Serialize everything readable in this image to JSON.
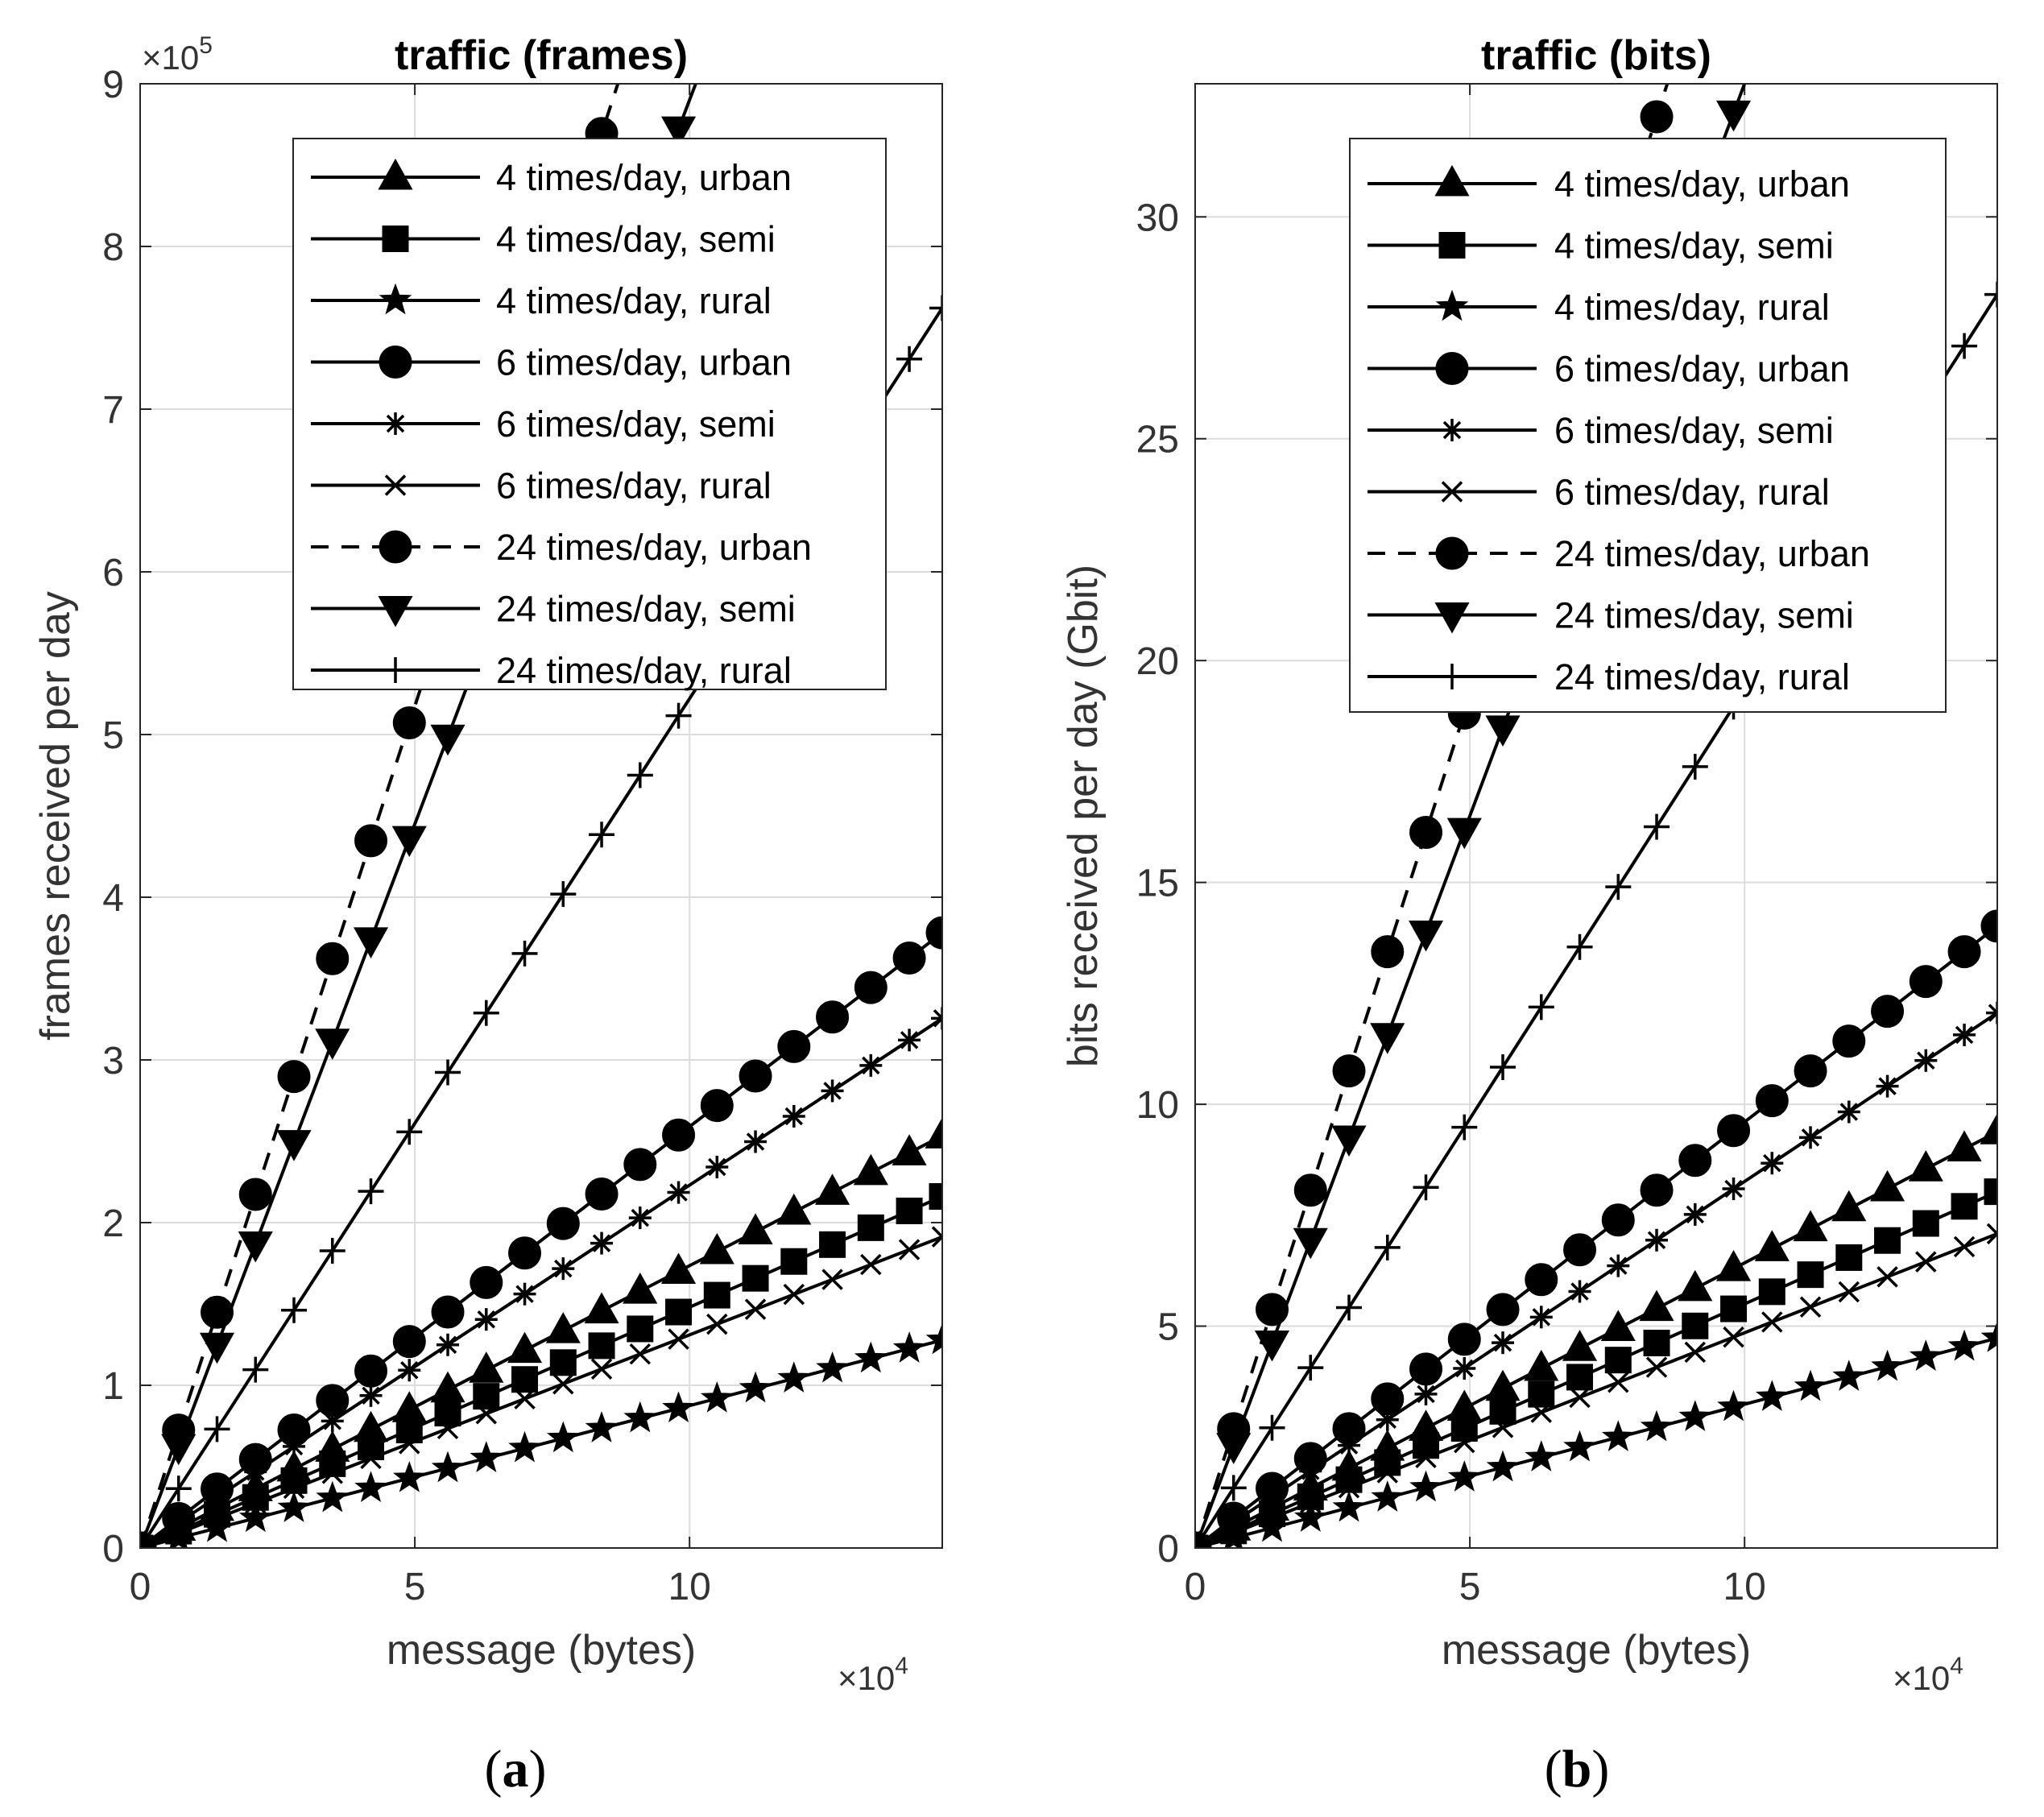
{
  "charts": [
    {
      "title": "traffic (frames)",
      "xlabel": "message (bytes)",
      "ylabel": "frames received per day",
      "x_exponent_base": "×10",
      "x_exponent_power": "4",
      "y_exponent_base": "×10",
      "y_exponent_power": "5",
      "x_tick_labels": [
        "0",
        "5",
        "10"
      ],
      "y_tick_labels": [
        "0",
        "1",
        "2",
        "3",
        "4",
        "5",
        "6",
        "7",
        "8",
        "9"
      ],
      "caption_letter": "a"
    },
    {
      "title": "traffic (bits)",
      "xlabel": "message (bytes)",
      "ylabel": "bits received per day (Gbit)",
      "x_exponent_base": "×10",
      "x_exponent_power": "4",
      "x_tick_labels": [
        "0",
        "5",
        "10"
      ],
      "y_tick_labels": [
        "0",
        "5",
        "10",
        "15",
        "20",
        "25",
        "30"
      ],
      "caption_letter": "b"
    }
  ],
  "chart_data": [
    {
      "type": "line",
      "title": "traffic (frames)",
      "xlabel": "message (bytes)",
      "ylabel": "frames received per day",
      "x_scale": 10000,
      "y_scale": 100000,
      "xlim": [
        0,
        14.6
      ],
      "ylim": [
        0,
        9
      ],
      "grid": true,
      "legend_position": "top",
      "x": [
        0,
        0.7,
        1.4,
        2.1,
        2.8,
        3.5,
        4.2,
        4.9,
        5.6,
        6.3,
        7.0,
        7.7,
        8.4,
        9.1,
        9.8,
        10.5,
        11.2,
        11.9,
        12.6,
        13.3,
        14.0,
        14.6
      ],
      "series": [
        {
          "name": "4 times/day, urban",
          "marker": "triangle-up",
          "dashed": false,
          "slope": 0.1735
        },
        {
          "name": "4 times/day, semi",
          "marker": "square",
          "dashed": false,
          "slope": 0.148
        },
        {
          "name": "4 times/day, rural",
          "marker": "star",
          "dashed": false,
          "slope": 0.0875
        },
        {
          "name": "6 times/day, urban",
          "marker": "circle",
          "dashed": false,
          "slope": 0.259
        },
        {
          "name": "6 times/day, semi",
          "marker": "asterisk",
          "dashed": false,
          "slope": 0.223
        },
        {
          "name": "6 times/day, rural",
          "marker": "x",
          "dashed": false,
          "slope": 0.131
        },
        {
          "name": "24 times/day, urban",
          "marker": "circle",
          "dashed": true,
          "slope": 1.035
        },
        {
          "name": "24 times/day, semi",
          "marker": "triangle-down",
          "dashed": false,
          "slope": 0.89
        },
        {
          "name": "24 times/day, rural",
          "marker": "plus",
          "dashed": false,
          "slope": 0.522
        }
      ]
    },
    {
      "type": "line",
      "title": "traffic (bits)",
      "xlabel": "message (bytes)",
      "ylabel": "bits received per day (Gbit)",
      "x_scale": 10000,
      "xlim": [
        0,
        14.6
      ],
      "ylim": [
        0,
        33
      ],
      "grid": true,
      "legend_position": "top",
      "x": [
        0,
        0.7,
        1.4,
        2.1,
        2.8,
        3.5,
        4.2,
        4.9,
        5.6,
        6.3,
        7.0,
        7.7,
        8.4,
        9.1,
        9.8,
        10.5,
        11.2,
        11.9,
        12.6,
        13.3,
        14.0,
        14.6
      ],
      "series": [
        {
          "name": "4 times/day, urban",
          "marker": "triangle-up",
          "dashed": false,
          "slope": 0.6425
        },
        {
          "name": "4 times/day, semi",
          "marker": "square",
          "dashed": false,
          "slope": 0.55
        },
        {
          "name": "4 times/day, rural",
          "marker": "star",
          "dashed": false,
          "slope": 0.324
        },
        {
          "name": "6 times/day, urban",
          "marker": "circle",
          "dashed": false,
          "slope": 0.96
        },
        {
          "name": "6 times/day, semi",
          "marker": "asterisk",
          "dashed": false,
          "slope": 0.826
        },
        {
          "name": "6 times/day, rural",
          "marker": "x",
          "dashed": false,
          "slope": 0.485
        },
        {
          "name": "24 times/day, urban",
          "marker": "circle",
          "dashed": true,
          "slope": 3.84
        },
        {
          "name": "24 times/day, semi",
          "marker": "triangle-down",
          "dashed": false,
          "slope": 3.3
        },
        {
          "name": "24 times/day, rural",
          "marker": "plus",
          "dashed": false,
          "slope": 1.935
        }
      ]
    }
  ]
}
